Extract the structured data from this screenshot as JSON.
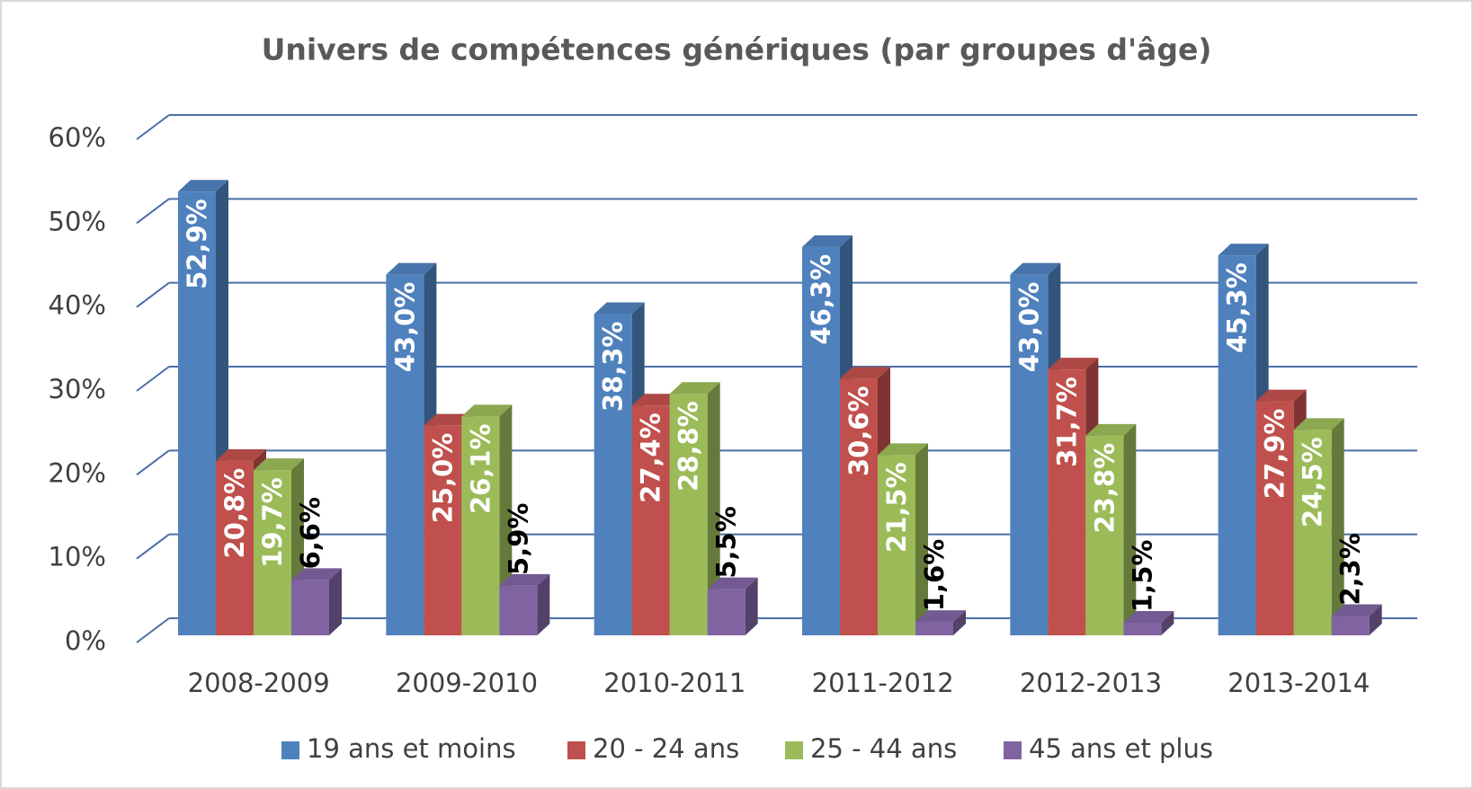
{
  "chart_data": {
    "type": "bar3d",
    "title": "Univers de compétences génériques (par groupes d'âge)",
    "categories": [
      "2008-2009",
      "2009-2010",
      "2010-2011",
      "2011-2012",
      "2012-2013",
      "2013-2014"
    ],
    "series": [
      {
        "name": "19 ans et moins",
        "color": "#4f81bd",
        "values": [
          52.9,
          43.0,
          38.3,
          46.3,
          43.0,
          45.3
        ],
        "value_labels": [
          "52,9%",
          "43,0%",
          "38,3%",
          "46,3%",
          "43,0%",
          "45,3%"
        ]
      },
      {
        "name": "20 - 24 ans",
        "color": "#c0504d",
        "values": [
          20.8,
          25.0,
          27.4,
          30.6,
          31.7,
          27.9
        ],
        "value_labels": [
          "20,8%",
          "25,0%",
          "27,4%",
          "30,6%",
          "31,7%",
          "27,9%"
        ]
      },
      {
        "name": "25 - 44 ans",
        "color": "#9bbb59",
        "values": [
          19.7,
          26.1,
          28.8,
          21.5,
          23.8,
          24.5
        ],
        "value_labels": [
          "19,7%",
          "26,1%",
          "28,8%",
          "21,5%",
          "23,8%",
          "24,5%"
        ]
      },
      {
        "name": "45 ans et plus",
        "color": "#8064a2",
        "values": [
          6.6,
          5.9,
          5.5,
          1.6,
          1.5,
          2.3
        ],
        "value_labels": [
          "6,6%",
          "5,9%",
          "5,5%",
          "1,6%",
          "1,5%",
          "2,3%"
        ]
      }
    ],
    "ylim": [
      0,
      60
    ],
    "yticks": [
      {
        "value": 0,
        "label": "0%"
      },
      {
        "value": 10,
        "label": "10%"
      },
      {
        "value": 20,
        "label": "20%"
      },
      {
        "value": 30,
        "label": "30%"
      },
      {
        "value": 40,
        "label": "40%"
      },
      {
        "value": 50,
        "label": "50%"
      },
      {
        "value": 60,
        "label": "60%"
      }
    ],
    "grid": true,
    "legend": "bottom"
  }
}
